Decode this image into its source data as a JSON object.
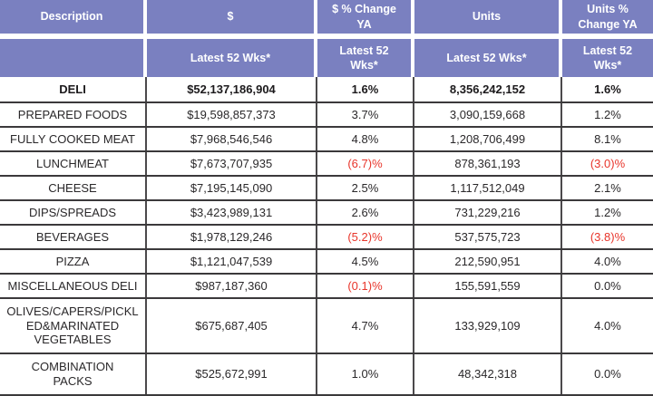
{
  "colors": {
    "header_background": "#7a80c0",
    "header_text": "#ffffff",
    "body_text": "#2a282a",
    "negative_value_red": "#e8352b",
    "grid_border": "#3b393b"
  },
  "chart_data": {
    "type": "table",
    "header_row1": [
      "Description",
      "$",
      "$ % Change YA",
      "Units",
      "Units % Change YA"
    ],
    "header_row2": [
      "",
      "Latest 52 Wks*",
      "Latest 52 Wks*",
      "Latest 52 Wks*",
      "Latest 52 Wks*"
    ],
    "rows": [
      {
        "description": "DELI",
        "dollars": "$52,137,186,904",
        "dollar_change": "1.6%",
        "units": "8,356,242,152",
        "units_change": "1.6%"
      },
      {
        "description": "PREPARED FOODS",
        "dollars": "$19,598,857,373",
        "dollar_change": "3.7%",
        "units": "3,090,159,668",
        "units_change": "1.2%"
      },
      {
        "description": "FULLY COOKED MEAT",
        "dollars": "$7,968,546,546",
        "dollar_change": "4.8%",
        "units": "1,208,706,499",
        "units_change": "8.1%"
      },
      {
        "description": "LUNCHMEAT",
        "dollars": "$7,673,707,935",
        "dollar_change": "(6.7)%",
        "units": "878,361,193",
        "units_change": "(3.0)%"
      },
      {
        "description": "CHEESE",
        "dollars": "$7,195,145,090",
        "dollar_change": "2.5%",
        "units": "1,117,512,049",
        "units_change": "2.1%"
      },
      {
        "description": "DIPS/SPREADS",
        "dollars": "$3,423,989,131",
        "dollar_change": "2.6%",
        "units": "731,229,216",
        "units_change": "1.2%"
      },
      {
        "description": "BEVERAGES",
        "dollars": "$1,978,129,246",
        "dollar_change": "(5.2)%",
        "units": "537,575,723",
        "units_change": "(3.8)%"
      },
      {
        "description": "PIZZA",
        "dollars": "$1,121,047,539",
        "dollar_change": "4.5%",
        "units": "212,590,951",
        "units_change": "4.0%"
      },
      {
        "description": "MISCELLANEOUS DELI",
        "dollars": "$987,187,360",
        "dollar_change": "(0.1)%",
        "units": "155,591,559",
        "units_change": "0.0%"
      },
      {
        "description": "OLIVES/CAPERS/PICKL\nED&MARINATED\nVEGETABLES",
        "dollars": "$675,687,405",
        "dollar_change": "4.7%",
        "units": "133,929,109",
        "units_change": "4.0%"
      },
      {
        "description": "COMBINATION\nPACKS",
        "dollars": "$525,672,991",
        "dollar_change": "1.0%",
        "units": "48,342,318",
        "units_change": "0.0%"
      }
    ]
  }
}
